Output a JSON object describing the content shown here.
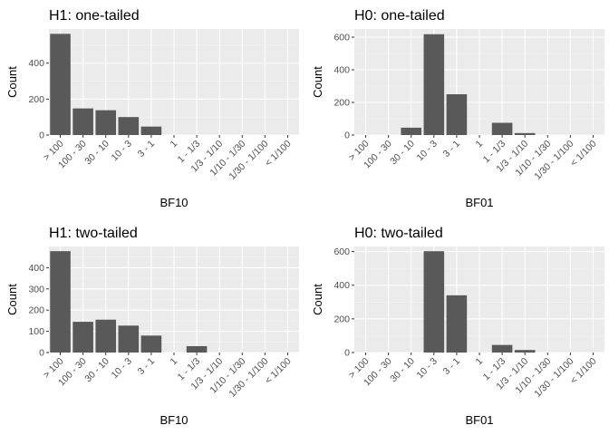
{
  "chart_data": [
    {
      "type": "bar",
      "title": "H1: one-tailed",
      "xlabel": "BF10",
      "ylabel": "Count",
      "categories": [
        "> 100",
        "100 - 30",
        "30 - 10",
        "10 - 3",
        "3 - 1",
        "1",
        "1 - 1/3",
        "1/3 - 1/10",
        "1/10 - 1/30",
        "1/30 - 1/100",
        "< 1/100"
      ],
      "values": [
        563,
        148,
        138,
        100,
        47,
        0,
        0,
        0,
        0,
        0,
        0
      ],
      "yticks": [
        0,
        200,
        400
      ],
      "ylim": [
        0,
        590
      ]
    },
    {
      "type": "bar",
      "title": "H0: one-tailed",
      "xlabel": "BF01",
      "ylabel": "Count",
      "categories": [
        "> 100",
        "100 - 30",
        "30 - 10",
        "10 - 3",
        "3 - 1",
        "1",
        "1 - 1/3",
        "1/3 - 1/10",
        "1/10 - 1/30",
        "1/30 - 1/100",
        "< 1/100"
      ],
      "values": [
        0,
        0,
        45,
        618,
        250,
        0,
        75,
        12,
        0,
        0,
        0
      ],
      "yticks": [
        0,
        200,
        400,
        600
      ],
      "ylim": [
        0,
        650
      ]
    },
    {
      "type": "bar",
      "title": "H1: two-tailed",
      "xlabel": "BF10",
      "ylabel": "Count",
      "categories": [
        "> 100",
        "100 - 30",
        "30 - 10",
        "10 - 3",
        "3 - 1",
        "1",
        "1 - 1/3",
        "1/3 - 1/10",
        "1/10 - 1/30",
        "1/30 - 1/100",
        "< 1/100"
      ],
      "values": [
        478,
        145,
        155,
        127,
        80,
        0,
        30,
        0,
        0,
        0,
        0
      ],
      "yticks": [
        0,
        100,
        200,
        300,
        400
      ],
      "ylim": [
        0,
        500
      ]
    },
    {
      "type": "bar",
      "title": "H0: two-tailed",
      "xlabel": "BF01",
      "ylabel": "Count",
      "categories": [
        "> 100",
        "100 - 30",
        "30 - 10",
        "10 - 3",
        "3 - 1",
        "1",
        "1 - 1/3",
        "1/3 - 1/10",
        "1/10 - 1/30",
        "1/30 - 1/100",
        "< 1/100"
      ],
      "values": [
        0,
        0,
        0,
        602,
        340,
        0,
        45,
        15,
        0,
        0,
        0
      ],
      "yticks": [
        0,
        200,
        400,
        600
      ],
      "ylim": [
        0,
        630
      ]
    }
  ],
  "colors": {
    "bar": "#595959",
    "panel_background": "#ebebeb",
    "grid_major": "#ffffff",
    "grid_minor": "#f5f5f5",
    "tick_text": "#4d4d4d"
  }
}
